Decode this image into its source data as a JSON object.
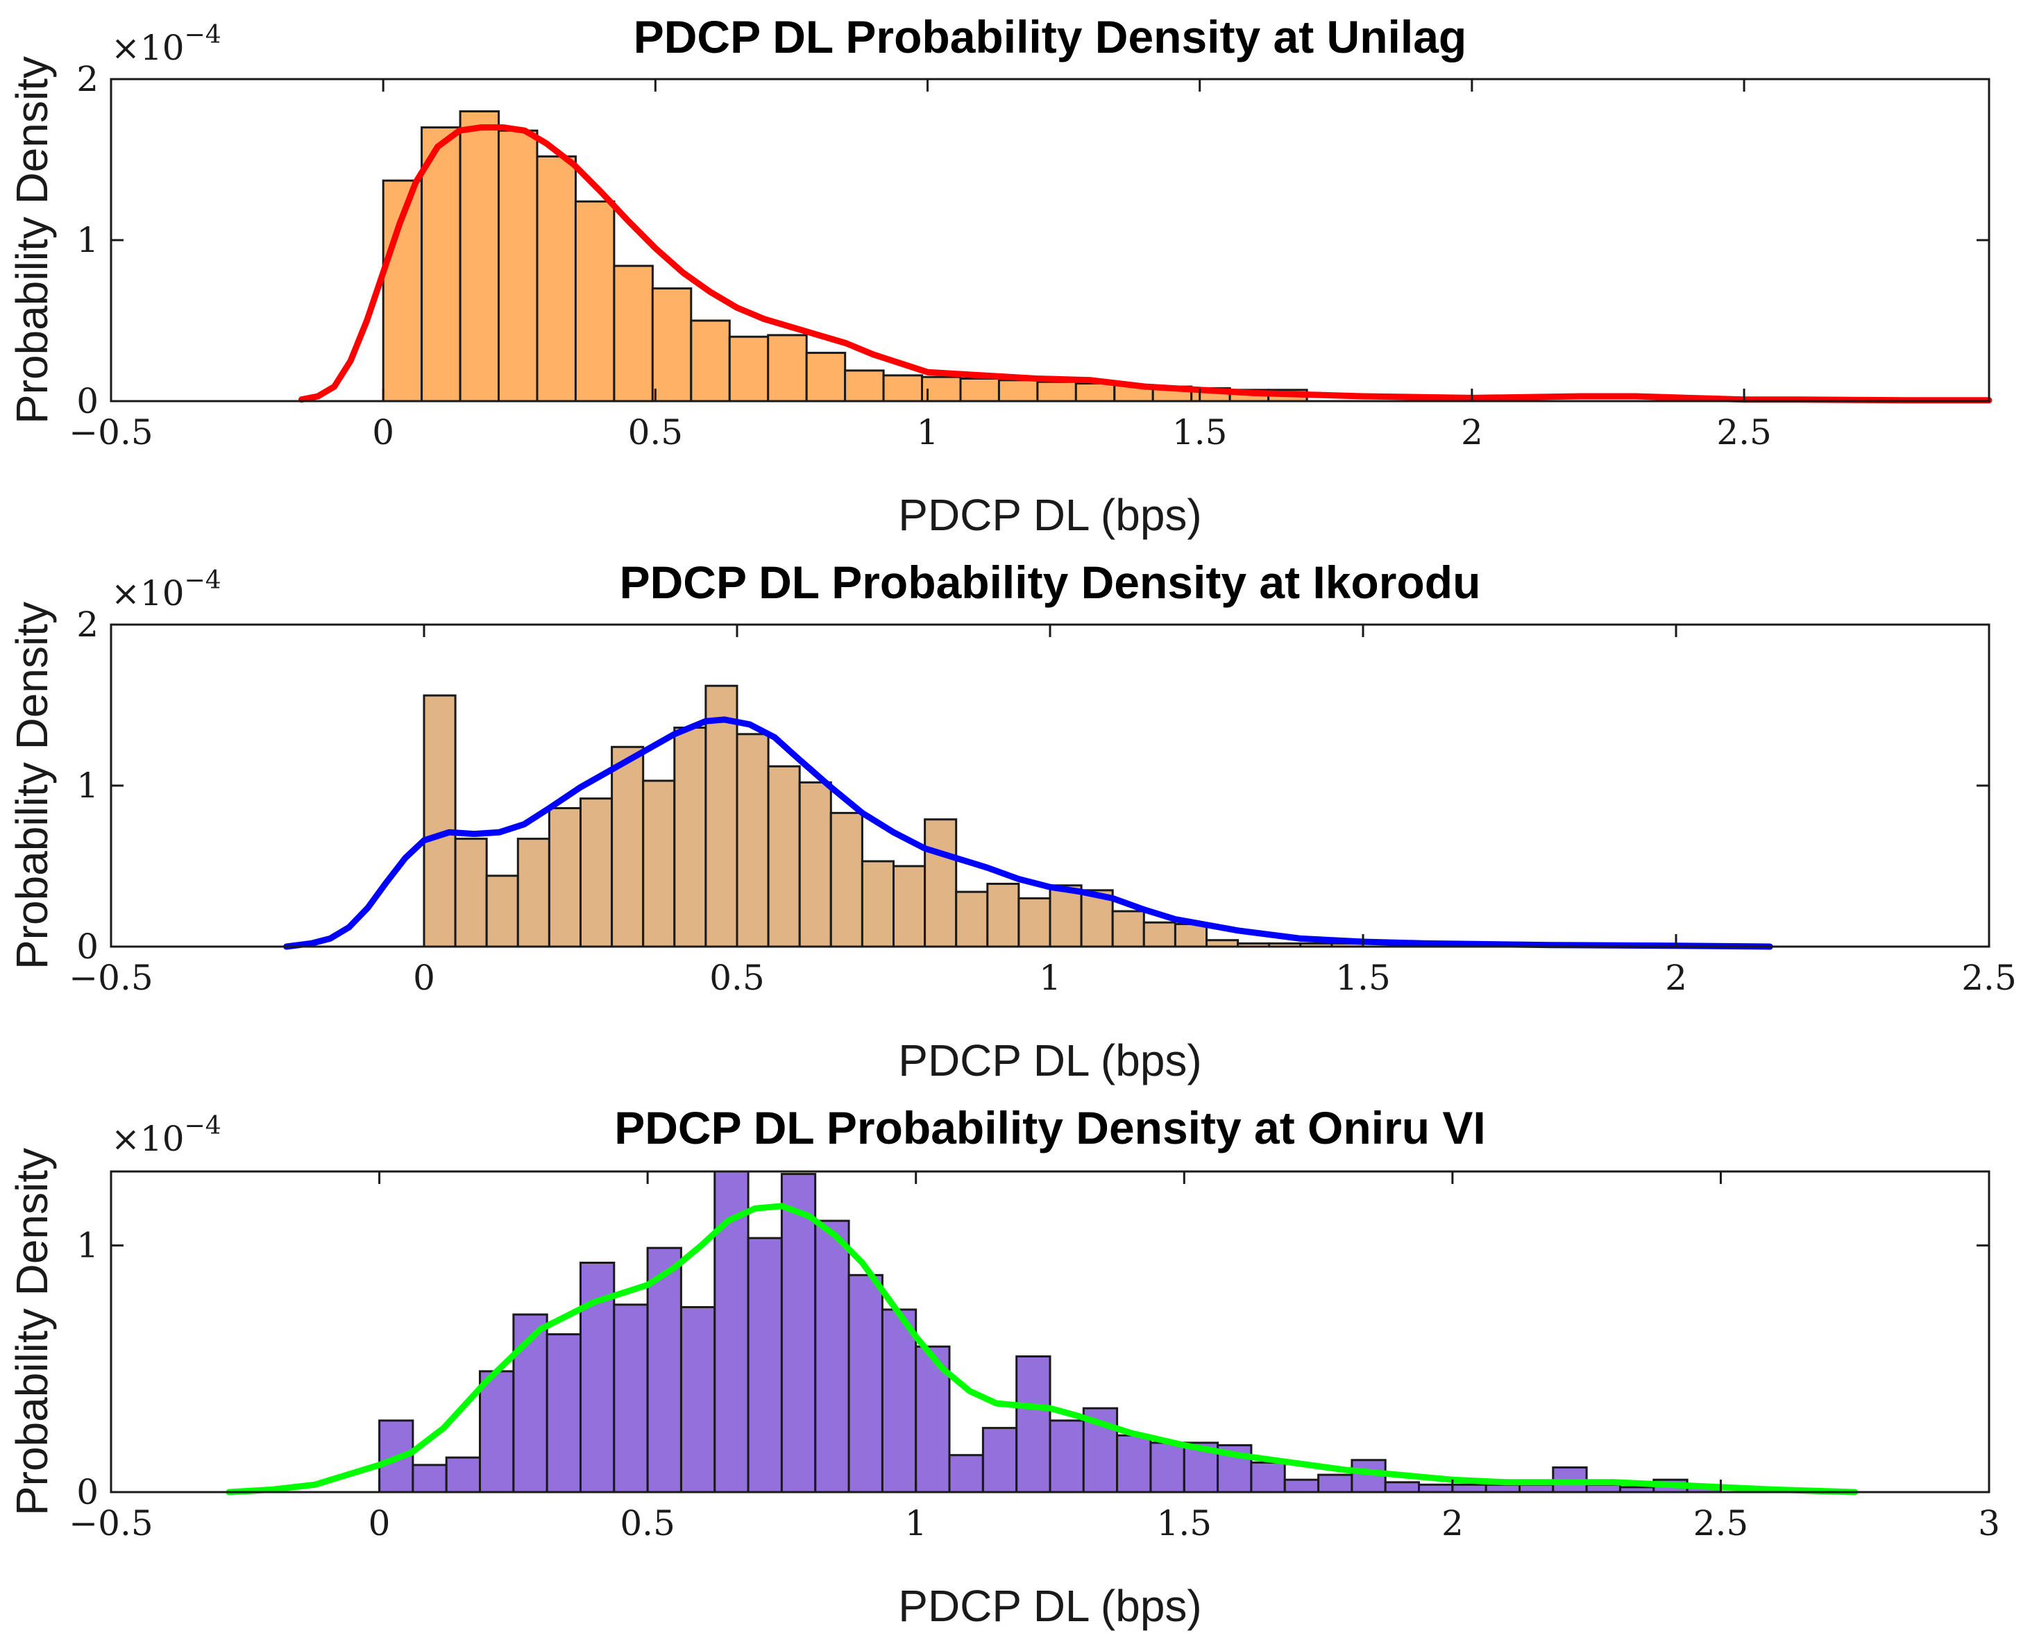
{
  "chart_data": [
    {
      "type": "bar",
      "title": "PDCP DL Probability Density at Unilag",
      "xlabel": "PDCP DL (bps)",
      "ylabel": "Probability Density",
      "exponent_label": "×10",
      "exponent_power": "−4",
      "xlim": [
        -0.5,
        2.95
      ],
      "ylim": [
        0,
        2
      ],
      "xticks": [
        -0.5,
        0,
        0.5,
        1,
        1.5,
        2,
        2.5
      ],
      "xtick_labels": [
        "−0.5",
        "0",
        "0.5",
        "1",
        "1.5",
        "2",
        "2.5"
      ],
      "yticks": [
        0,
        1,
        2
      ],
      "ytick_labels": [
        "0",
        "1",
        "2"
      ],
      "colors": {
        "bar": "#ffb265",
        "curve": "#ff0000"
      },
      "bins": {
        "start": 0,
        "width": 0.0707,
        "values": [
          1.37,
          1.7,
          1.8,
          1.68,
          1.52,
          1.24,
          0.84,
          0.7,
          0.5,
          0.4,
          0.41,
          0.3,
          0.19,
          0.16,
          0.15,
          0.14,
          0.13,
          0.12,
          0.11,
          0.1,
          0.09,
          0.08,
          0.07,
          0.07
        ]
      },
      "kde": {
        "x": [
          -0.15,
          -0.12,
          -0.09,
          -0.06,
          -0.03,
          0.0,
          0.03,
          0.06,
          0.1,
          0.14,
          0.18,
          0.22,
          0.26,
          0.3,
          0.35,
          0.4,
          0.45,
          0.5,
          0.55,
          0.6,
          0.65,
          0.7,
          0.75,
          0.8,
          0.85,
          0.9,
          1.0,
          1.1,
          1.2,
          1.3,
          1.4,
          1.5,
          1.6,
          1.8,
          2.0,
          2.2,
          2.25,
          2.3,
          2.5,
          2.6,
          2.8,
          2.95
        ],
        "y": [
          0.01,
          0.03,
          0.09,
          0.25,
          0.5,
          0.8,
          1.1,
          1.36,
          1.58,
          1.68,
          1.7,
          1.7,
          1.68,
          1.6,
          1.47,
          1.3,
          1.12,
          0.95,
          0.8,
          0.68,
          0.58,
          0.51,
          0.46,
          0.41,
          0.36,
          0.29,
          0.18,
          0.16,
          0.14,
          0.13,
          0.09,
          0.07,
          0.05,
          0.03,
          0.02,
          0.03,
          0.03,
          0.03,
          0.01,
          0.01,
          0.005,
          0.005
        ]
      }
    },
    {
      "type": "bar",
      "title": "PDCP DL Probability Density at Ikorodu",
      "xlabel": "PDCP DL (bps)",
      "ylabel": "Probability Density",
      "exponent_label": "×10",
      "exponent_power": "−4",
      "xlim": [
        -0.5,
        2.5
      ],
      "ylim": [
        0,
        2
      ],
      "xticks": [
        -0.5,
        0,
        0.5,
        1,
        1.5,
        2,
        2.5
      ],
      "xtick_labels": [
        "−0.5",
        "0",
        "0.5",
        "1",
        "1.5",
        "2",
        "2.5"
      ],
      "yticks": [
        0,
        1,
        2
      ],
      "ytick_labels": [
        "0",
        "1",
        "2"
      ],
      "colors": {
        "bar": "#e0b484",
        "curve": "#0000ff"
      },
      "bins": {
        "start": 0,
        "width": 0.05,
        "values": [
          1.56,
          0.67,
          0.44,
          0.67,
          0.86,
          0.92,
          1.24,
          1.03,
          1.36,
          1.62,
          1.32,
          1.12,
          1.02,
          0.83,
          0.53,
          0.5,
          0.79,
          0.34,
          0.39,
          0.3,
          0.38,
          0.35,
          0.22,
          0.15,
          0.14,
          0.04,
          0.02,
          0.02,
          0.02,
          0.02
        ]
      },
      "kde": {
        "x": [
          -0.22,
          -0.18,
          -0.15,
          -0.12,
          -0.09,
          -0.06,
          -0.03,
          0.0,
          0.04,
          0.08,
          0.12,
          0.16,
          0.2,
          0.25,
          0.3,
          0.35,
          0.4,
          0.45,
          0.48,
          0.52,
          0.56,
          0.6,
          0.65,
          0.7,
          0.75,
          0.8,
          0.85,
          0.9,
          0.95,
          1.0,
          1.05,
          1.1,
          1.15,
          1.2,
          1.3,
          1.4,
          1.5,
          1.6,
          1.8,
          2.0,
          2.15
        ],
        "y": [
          0.0,
          0.02,
          0.05,
          0.12,
          0.24,
          0.4,
          0.55,
          0.66,
          0.71,
          0.7,
          0.71,
          0.76,
          0.86,
          0.99,
          1.1,
          1.21,
          1.32,
          1.4,
          1.41,
          1.38,
          1.3,
          1.16,
          0.99,
          0.83,
          0.71,
          0.61,
          0.55,
          0.49,
          0.42,
          0.37,
          0.34,
          0.3,
          0.23,
          0.17,
          0.1,
          0.05,
          0.03,
          0.02,
          0.01,
          0.005,
          0.0
        ]
      }
    },
    {
      "type": "bar",
      "title": "PDCP DL Probability Density at Oniru VI",
      "xlabel": "PDCP DL (bps)",
      "ylabel": "Probability Density",
      "exponent_label": "×10",
      "exponent_power": "−4",
      "xlim": [
        -0.5,
        3
      ],
      "ylim": [
        0,
        1.3
      ],
      "xticks": [
        -0.5,
        0,
        0.5,
        1,
        1.5,
        2,
        2.5,
        3
      ],
      "xtick_labels": [
        "−0.5",
        "0",
        "0.5",
        "1",
        "1.5",
        "2",
        "2.5",
        "3"
      ],
      "yticks": [
        0,
        1
      ],
      "ytick_labels": [
        "0",
        "1"
      ],
      "colors": {
        "bar": "#9370db",
        "curve": "#00ff00"
      },
      "bins": {
        "start": 0,
        "width": 0.0625,
        "values": [
          0.29,
          0.11,
          0.14,
          0.49,
          0.72,
          0.64,
          0.93,
          0.76,
          0.99,
          0.75,
          1.31,
          1.03,
          1.29,
          1.1,
          0.88,
          0.74,
          0.59,
          0.15,
          0.26,
          0.55,
          0.29,
          0.34,
          0.23,
          0.2,
          0.2,
          0.19,
          0.12,
          0.05,
          0.07,
          0.13,
          0.04,
          0.03,
          0.03,
          0.03,
          0.03,
          0.1,
          0.03,
          0.02,
          0.05,
          0.02
        ]
      },
      "kde": {
        "x": [
          -0.28,
          -0.2,
          -0.12,
          -0.06,
          0.0,
          0.06,
          0.12,
          0.2,
          0.3,
          0.4,
          0.5,
          0.55,
          0.6,
          0.65,
          0.7,
          0.75,
          0.8,
          0.85,
          0.9,
          0.95,
          1.0,
          1.05,
          1.1,
          1.15,
          1.2,
          1.25,
          1.3,
          1.4,
          1.5,
          1.6,
          1.7,
          1.8,
          1.9,
          2.0,
          2.1,
          2.2,
          2.3,
          2.4,
          2.5,
          2.6,
          2.75
        ],
        "y": [
          0.0,
          0.01,
          0.03,
          0.07,
          0.11,
          0.16,
          0.26,
          0.45,
          0.66,
          0.77,
          0.84,
          0.91,
          1.0,
          1.1,
          1.15,
          1.16,
          1.12,
          1.04,
          0.93,
          0.78,
          0.63,
          0.5,
          0.41,
          0.36,
          0.35,
          0.34,
          0.31,
          0.24,
          0.19,
          0.15,
          0.12,
          0.09,
          0.07,
          0.05,
          0.04,
          0.04,
          0.04,
          0.03,
          0.02,
          0.01,
          0.0
        ]
      }
    }
  ]
}
